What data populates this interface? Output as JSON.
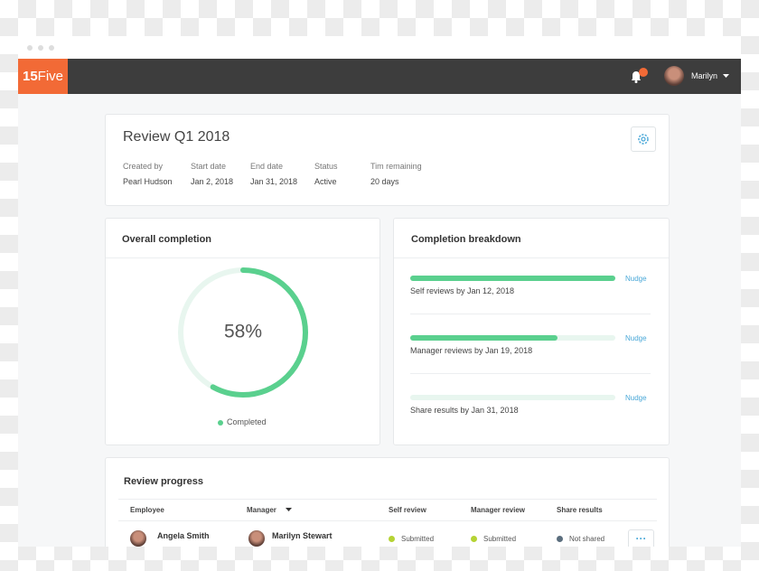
{
  "nav": {
    "logo_number": "15",
    "logo_word": "Five",
    "user": "Marilyn"
  },
  "review": {
    "title": "Review Q1 2018",
    "fields": [
      {
        "label": "Created by",
        "value": "Pearl Hudson"
      },
      {
        "label": "Start date",
        "value": "Jan 2, 2018"
      },
      {
        "label": "End date",
        "value": "Jan 31, 2018"
      },
      {
        "label": "Status",
        "value": "Active"
      },
      {
        "label": "Tim remaining",
        "value": "20 days"
      }
    ]
  },
  "overall": {
    "title": "Overall completion",
    "percent": {
      "value": 58,
      "label": "58%"
    },
    "legend": "Completed",
    "color": "#5ad08e"
  },
  "breakdown": {
    "title": "Completion breakdown",
    "items": [
      {
        "label": "Self reviews by Jan 12, 2018",
        "progress": 100,
        "action": "Nudge"
      },
      {
        "label": "Manager reviews by Jan 19, 2018",
        "progress": 72,
        "action": "Nudge"
      },
      {
        "label": "Share results by Jan 31, 2018",
        "progress": 0,
        "action": "Nudge"
      }
    ]
  },
  "progress": {
    "title": "Review progress",
    "columns": [
      "Employee",
      "Manager",
      "Self review",
      "Manager review",
      "Share results"
    ],
    "rows": [
      {
        "employee": "Angela Smith",
        "manager": "Marilyn Stewart",
        "self_review": "Submitted",
        "manager_review": "Submitted",
        "share_results": "Not shared"
      }
    ]
  }
}
